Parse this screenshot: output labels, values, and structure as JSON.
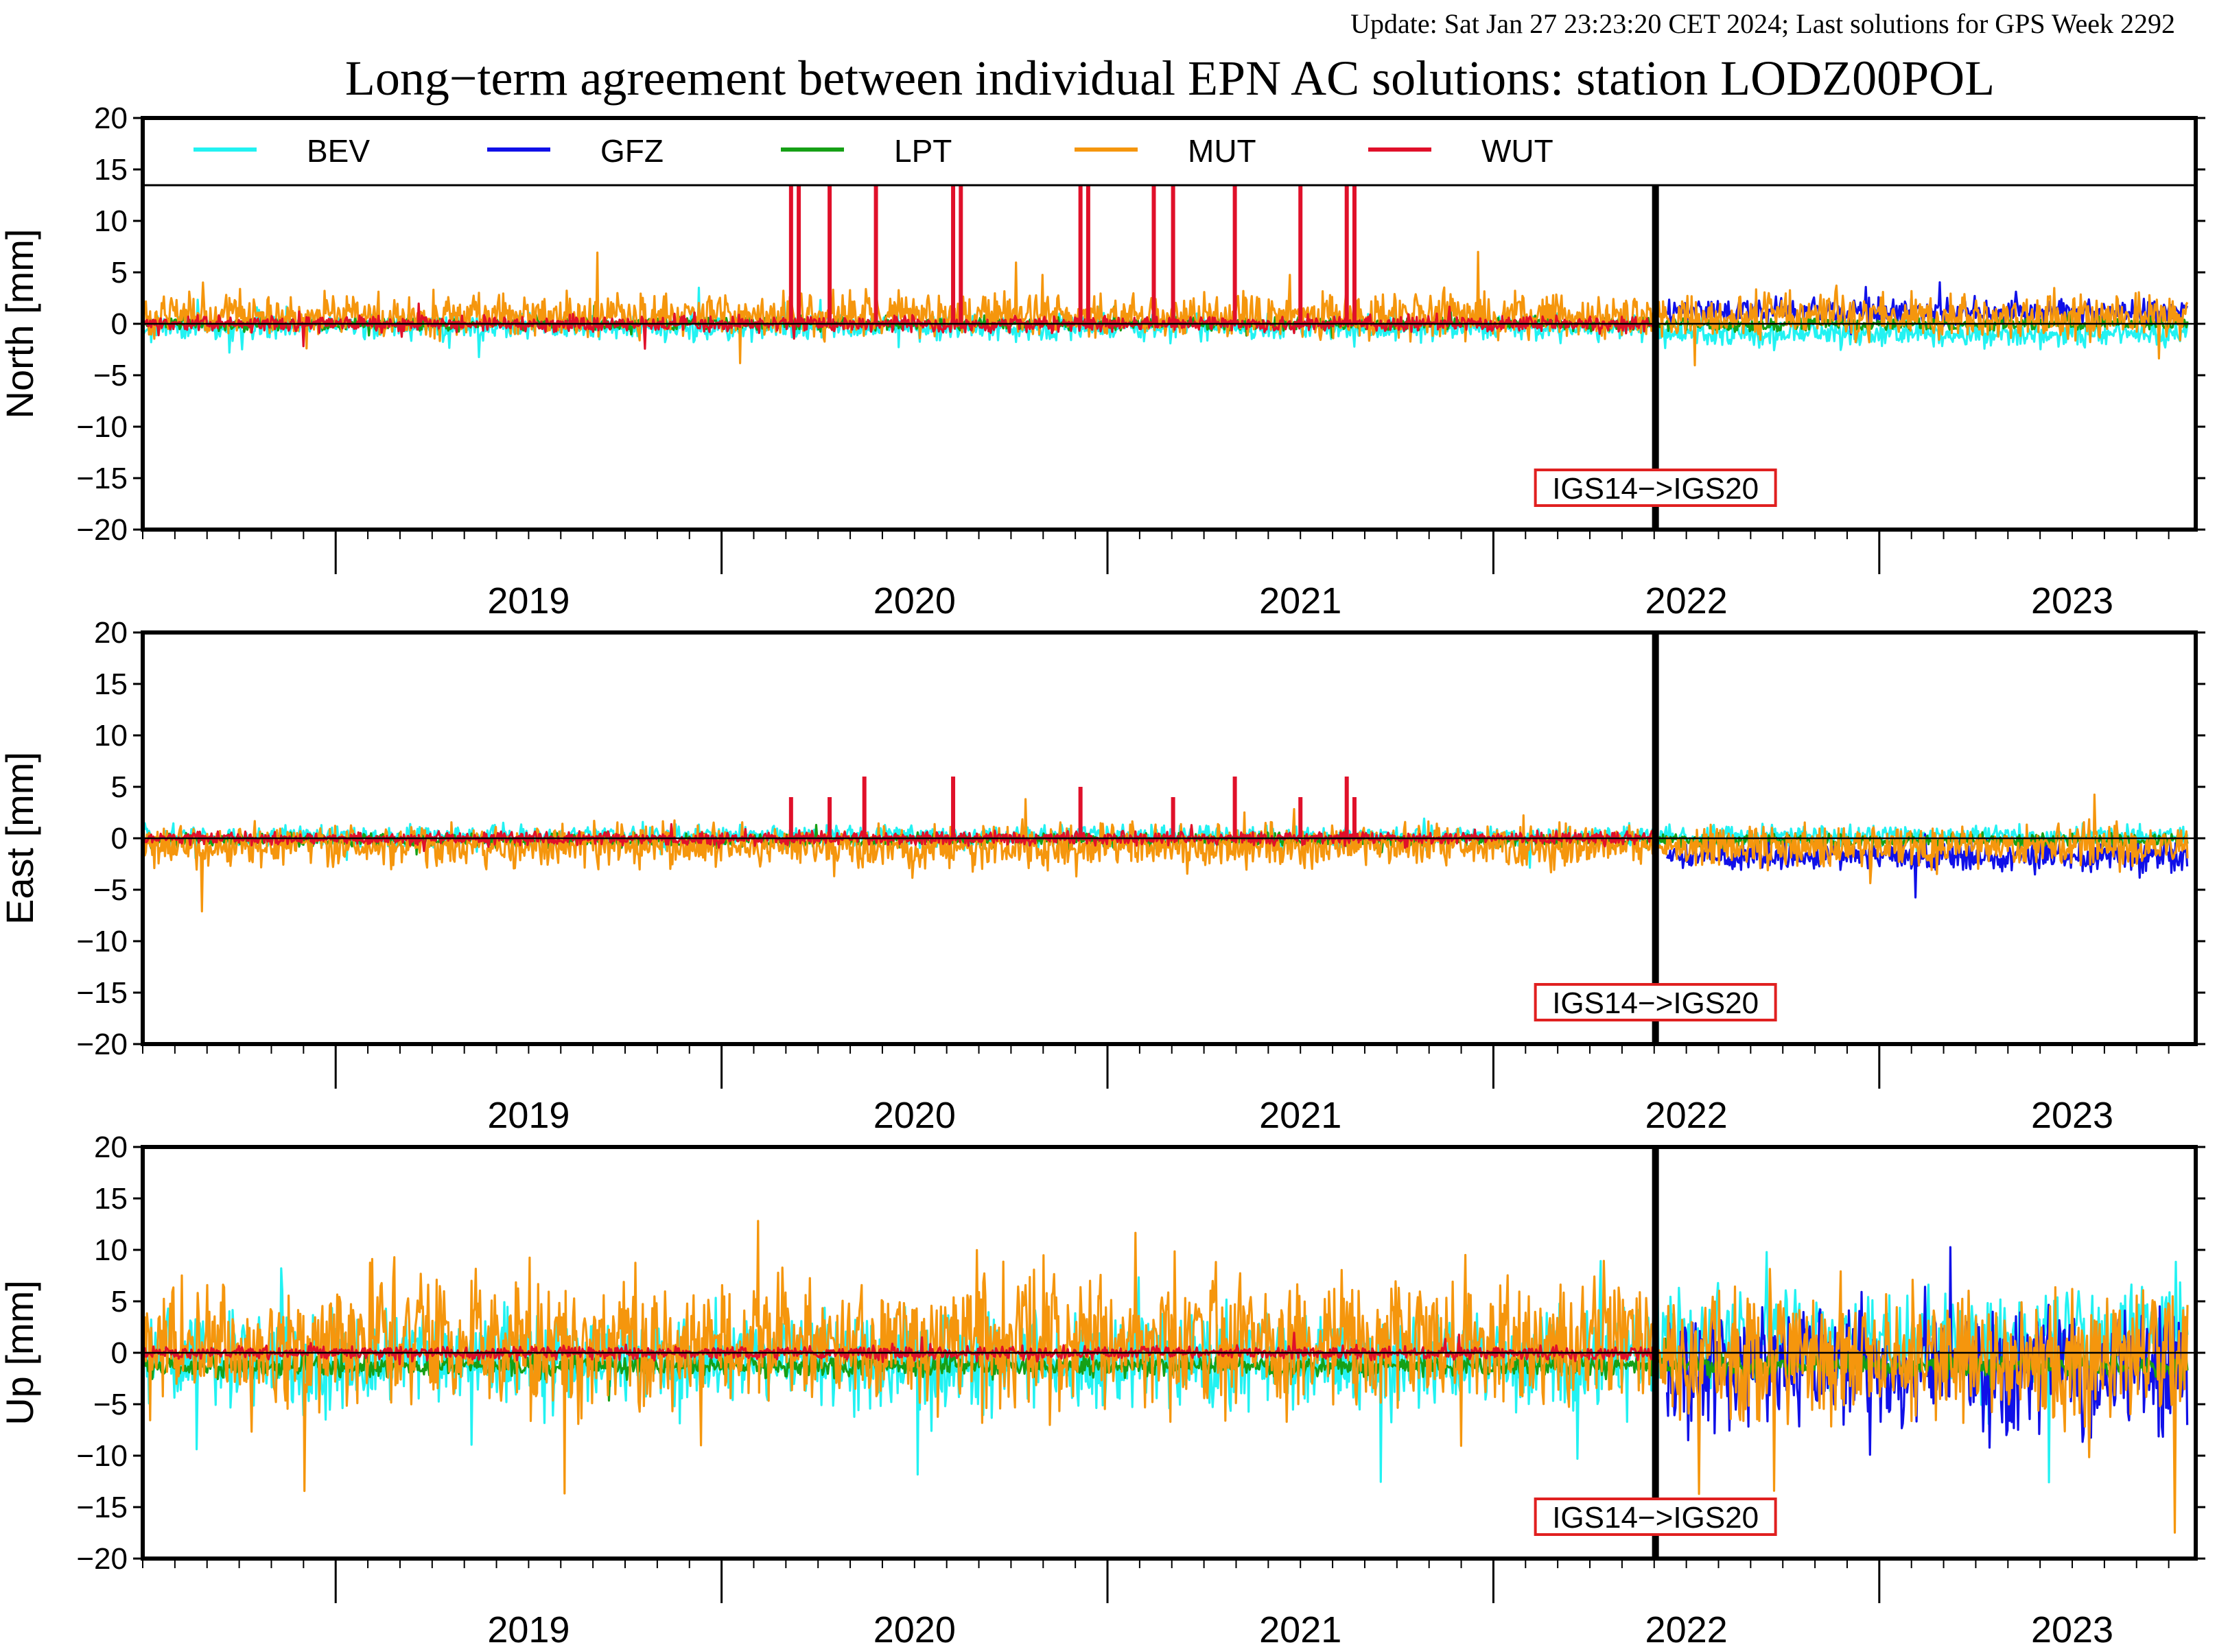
{
  "header": {
    "update_text": "Update: Sat Jan 27 23:23:20 CET 2024; Last solutions for GPS Week 2292",
    "title": "Long−term agreement between individual EPN AC solutions: station LODZ00POL"
  },
  "colors": {
    "BEV": "#22f2f2",
    "GFZ": "#1010e8",
    "LPT": "#16a016",
    "MUT": "#f5960d",
    "WUT": "#e0102a",
    "update_text": "#8b1a1a",
    "marker_box": "#e02020"
  },
  "legend": {
    "entries": [
      "BEV",
      "GFZ",
      "LPT",
      "MUT",
      "WUT"
    ]
  },
  "marker": {
    "label": "IGS14−>IGS20",
    "date": 2022.42
  },
  "chart_data": [
    {
      "type": "line",
      "ylabel": "North [mm]",
      "ylim": [
        -20,
        20
      ],
      "yticks": [
        20,
        15,
        10,
        5,
        0,
        -5,
        -10,
        -15,
        -20
      ],
      "xlim": [
        2018.5,
        2023.82
      ],
      "year_labels": [
        "2019",
        "2020",
        "2021",
        "2022",
        "2023"
      ],
      "legend": "top",
      "series": [
        {
          "name": "BEV",
          "amp": 0.6,
          "bias": -0.3,
          "bias_after": -1.0,
          "start": 2018.5,
          "end": 2023.8
        },
        {
          "name": "GFZ",
          "amp": 0.6,
          "bias": 1.2,
          "start": 2022.45,
          "end": 2023.8
        },
        {
          "name": "LPT",
          "amp": 0.3,
          "bias": 0.0,
          "start": 2018.5,
          "end": 2023.8
        },
        {
          "name": "MUT",
          "amp": 1.0,
          "bias": 0.8,
          "start": 2018.5,
          "end": 2023.8
        },
        {
          "name": "WUT",
          "amp": 0.35,
          "bias": 0.0,
          "start": 2018.5,
          "end": 2022.42,
          "spikes": [
            [
              2020.18,
              20
            ],
            [
              2020.2,
              20
            ],
            [
              2020.28,
              20
            ],
            [
              2020.4,
              20
            ],
            [
              2020.6,
              20
            ],
            [
              2020.62,
              20
            ],
            [
              2020.93,
              20
            ],
            [
              2020.95,
              20
            ],
            [
              2021.12,
              20
            ],
            [
              2021.17,
              20
            ],
            [
              2021.33,
              20
            ],
            [
              2021.5,
              20
            ],
            [
              2021.62,
              20
            ],
            [
              2021.64,
              20
            ]
          ]
        }
      ]
    },
    {
      "type": "line",
      "ylabel": "East [mm]",
      "ylim": [
        -20,
        20
      ],
      "yticks": [
        20,
        15,
        10,
        5,
        0,
        -5,
        -10,
        -15,
        -20
      ],
      "xlim": [
        2018.5,
        2023.82
      ],
      "year_labels": [
        "2019",
        "2020",
        "2021",
        "2022",
        "2023"
      ],
      "series": [
        {
          "name": "BEV",
          "amp": 0.5,
          "bias": 0.2,
          "start": 2018.5,
          "end": 2023.8
        },
        {
          "name": "GFZ",
          "amp": 0.7,
          "bias": -1.7,
          "start": 2022.45,
          "end": 2023.8
        },
        {
          "name": "LPT",
          "amp": 0.3,
          "bias": -0.2,
          "start": 2018.5,
          "end": 2023.8
        },
        {
          "name": "MUT",
          "amp": 1.0,
          "bias": -0.7,
          "start": 2018.5,
          "end": 2023.8
        },
        {
          "name": "WUT",
          "amp": 0.3,
          "bias": 0.0,
          "start": 2018.5,
          "end": 2022.42,
          "spikes": [
            [
              2020.18,
              4
            ],
            [
              2020.28,
              4
            ],
            [
              2020.37,
              6
            ],
            [
              2020.6,
              6
            ],
            [
              2020.93,
              5
            ],
            [
              2021.17,
              4
            ],
            [
              2021.33,
              6
            ],
            [
              2021.5,
              4
            ],
            [
              2021.62,
              6
            ],
            [
              2021.64,
              4
            ]
          ]
        }
      ]
    },
    {
      "type": "line",
      "ylabel": "Up [mm]",
      "ylim": [
        -20,
        20
      ],
      "yticks": [
        20,
        15,
        10,
        5,
        0,
        -5,
        -10,
        -15,
        -20
      ],
      "xlim": [
        2018.5,
        2023.82
      ],
      "year_labels": [
        "2019",
        "2020",
        "2021",
        "2022",
        "2023"
      ],
      "series": [
        {
          "name": "BEV",
          "amp": 2.2,
          "bias": -0.8,
          "bias_after": 1.5,
          "start": 2018.5,
          "end": 2023.8
        },
        {
          "name": "GFZ",
          "amp": 3.0,
          "bias": -1.5,
          "start": 2022.45,
          "end": 2023.8
        },
        {
          "name": "LPT",
          "amp": 0.5,
          "bias": -1.3,
          "start": 2018.5,
          "end": 2023.8
        },
        {
          "name": "MUT",
          "amp": 3.0,
          "bias": 1.0,
          "bias_after": -0.5,
          "start": 2018.5,
          "end": 2023.8
        },
        {
          "name": "WUT",
          "amp": 0.3,
          "bias": 0.0,
          "start": 2018.5,
          "end": 2022.42
        }
      ]
    }
  ]
}
